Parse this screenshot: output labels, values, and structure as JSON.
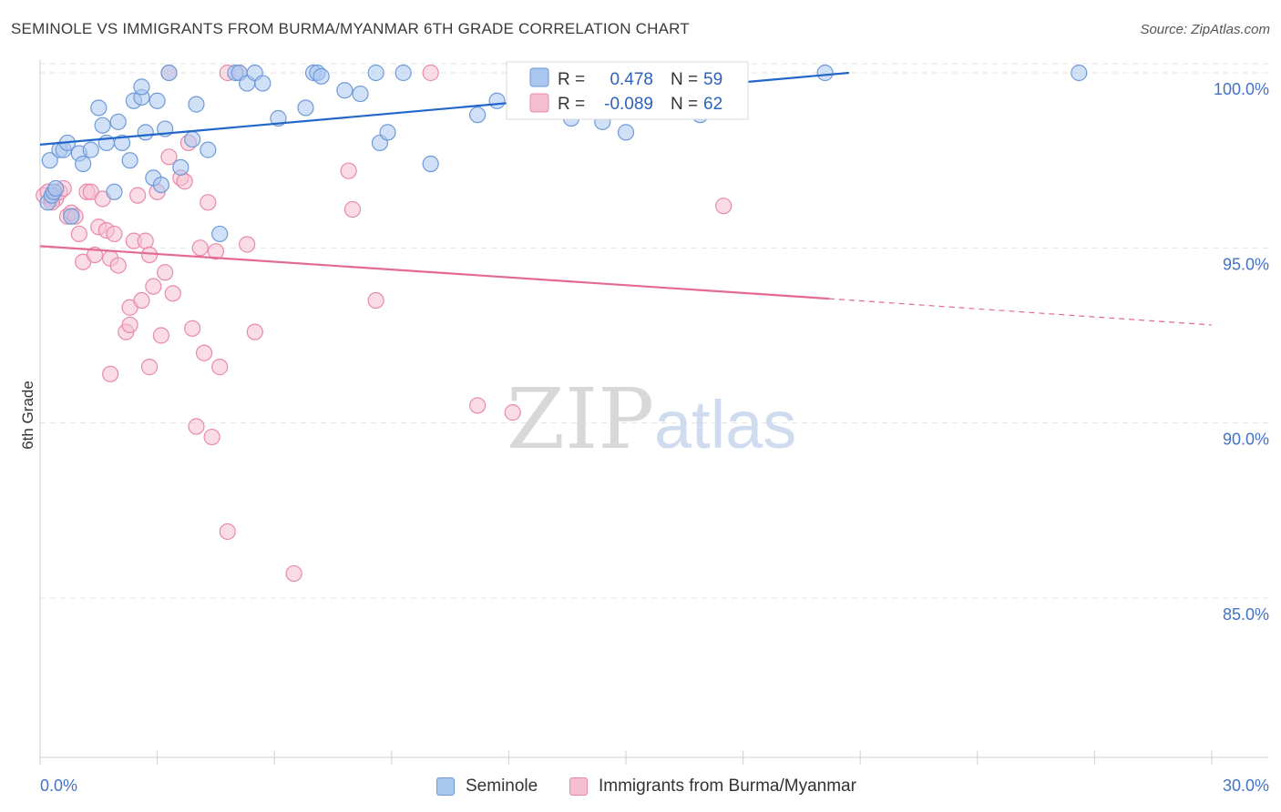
{
  "title": "SEMINOLE VS IMMIGRANTS FROM BURMA/MYANMAR 6TH GRADE CORRELATION CHART",
  "source": "Source: ZipAtlas.com",
  "watermark": {
    "zip": "ZIP",
    "atlas": "atlas"
  },
  "colors": {
    "blue_fill": "#a9c6ef",
    "blue_stroke": "#6f9ad8",
    "blue_line": "#2166c8",
    "pink_fill": "#f6bfd0",
    "pink_stroke": "#e88aaa",
    "pink_line": "#e46a93",
    "tick_text": "#4472c4",
    "grid": "#e3e3e3"
  },
  "legend": {
    "r_label": "R =",
    "n_label": "N =",
    "rows": [
      {
        "r": "0.478",
        "n": "59"
      },
      {
        "r": "-0.089",
        "n": "62"
      }
    ]
  },
  "chart_data": {
    "type": "scatter",
    "title": "SEMINOLE VS IMMIGRANTS FROM BURMA/MYANMAR 6TH GRADE CORRELATION CHART",
    "xlabel": "",
    "ylabel": "6th Grade",
    "xlim": [
      0,
      30
    ],
    "ylim": [
      80.5,
      100.8
    ],
    "x_tick_labels": [
      "0.0%",
      "30.0%"
    ],
    "y_ticks": [
      85,
      90,
      95,
      100
    ],
    "y_tick_labels": [
      "85.0%",
      "90.0%",
      "95.0%",
      "100.0%"
    ],
    "grid": "horizontal dashed",
    "legend_position": "top-center",
    "series": [
      {
        "name": "Seminole",
        "r": 0.478,
        "n": 59,
        "trend": {
          "x0": 0,
          "y0": 97.95,
          "x1": 20.2,
          "y1": 100.0
        },
        "points": [
          [
            0.2,
            96.3
          ],
          [
            0.25,
            97.5
          ],
          [
            0.3,
            96.5
          ],
          [
            0.35,
            96.6
          ],
          [
            0.4,
            96.7
          ],
          [
            0.5,
            97.8
          ],
          [
            0.6,
            97.8
          ],
          [
            0.7,
            98.0
          ],
          [
            0.8,
            95.9
          ],
          [
            1.0,
            97.7
          ],
          [
            1.1,
            97.4
          ],
          [
            1.3,
            97.8
          ],
          [
            1.5,
            99.0
          ],
          [
            1.6,
            98.5
          ],
          [
            1.7,
            98.0
          ],
          [
            1.9,
            96.6
          ],
          [
            2.0,
            98.6
          ],
          [
            2.1,
            98.0
          ],
          [
            2.3,
            97.5
          ],
          [
            2.4,
            99.2
          ],
          [
            2.6,
            99.3
          ],
          [
            2.6,
            99.6
          ],
          [
            2.7,
            98.3
          ],
          [
            2.9,
            97.0
          ],
          [
            3.0,
            99.2
          ],
          [
            3.1,
            96.8
          ],
          [
            3.2,
            98.4
          ],
          [
            3.3,
            100.0
          ],
          [
            3.6,
            97.3
          ],
          [
            3.9,
            98.1
          ],
          [
            4.0,
            99.1
          ],
          [
            4.3,
            97.8
          ],
          [
            4.6,
            95.4
          ],
          [
            5.0,
            100.0
          ],
          [
            5.1,
            100.0
          ],
          [
            5.3,
            99.7
          ],
          [
            5.5,
            100.0
          ],
          [
            5.7,
            99.7
          ],
          [
            6.1,
            98.7
          ],
          [
            6.8,
            99.0
          ],
          [
            7.0,
            100.0
          ],
          [
            7.1,
            100.0
          ],
          [
            7.2,
            99.9
          ],
          [
            7.8,
            99.5
          ],
          [
            8.2,
            99.4
          ],
          [
            8.6,
            100.0
          ],
          [
            8.7,
            98.0
          ],
          [
            8.9,
            98.3
          ],
          [
            9.3,
            100.0
          ],
          [
            10.0,
            97.4
          ],
          [
            11.2,
            98.8
          ],
          [
            11.7,
            99.2
          ],
          [
            12.3,
            100.0
          ],
          [
            13.6,
            98.7
          ],
          [
            14.4,
            98.6
          ],
          [
            15.0,
            98.3
          ],
          [
            16.9,
            98.8
          ],
          [
            20.1,
            100.0
          ],
          [
            26.6,
            100.0
          ]
        ]
      },
      {
        "name": "Immigrants from Burma/Myanmar",
        "r": -0.089,
        "n": 62,
        "trend_solid": {
          "x0": 0,
          "y0": 95.05,
          "x1": 20.2,
          "y1": 93.55
        },
        "trend_dashed": {
          "x0": 20.2,
          "y0": 93.55,
          "x1": 30,
          "y1": 92.8
        },
        "points": [
          [
            0.1,
            96.5
          ],
          [
            0.2,
            96.6
          ],
          [
            0.3,
            96.4
          ],
          [
            0.4,
            96.4
          ],
          [
            0.5,
            96.6
          ],
          [
            0.6,
            96.7
          ],
          [
            0.7,
            95.9
          ],
          [
            0.8,
            96.0
          ],
          [
            0.9,
            95.9
          ],
          [
            1.0,
            95.4
          ],
          [
            1.1,
            94.6
          ],
          [
            1.2,
            96.6
          ],
          [
            1.3,
            96.6
          ],
          [
            1.4,
            94.8
          ],
          [
            1.5,
            95.6
          ],
          [
            1.6,
            96.4
          ],
          [
            1.7,
            95.5
          ],
          [
            1.8,
            94.7
          ],
          [
            1.8,
            91.4
          ],
          [
            1.9,
            95.4
          ],
          [
            2.0,
            94.5
          ],
          [
            2.2,
            92.6
          ],
          [
            2.3,
            92.8
          ],
          [
            2.3,
            93.3
          ],
          [
            2.4,
            95.2
          ],
          [
            2.5,
            96.5
          ],
          [
            2.6,
            93.5
          ],
          [
            2.7,
            95.2
          ],
          [
            2.8,
            91.6
          ],
          [
            2.8,
            94.8
          ],
          [
            2.9,
            93.9
          ],
          [
            3.0,
            96.6
          ],
          [
            3.1,
            92.5
          ],
          [
            3.2,
            94.3
          ],
          [
            3.3,
            97.6
          ],
          [
            3.3,
            100.0
          ],
          [
            3.4,
            93.7
          ],
          [
            3.6,
            97.0
          ],
          [
            3.7,
            96.9
          ],
          [
            3.8,
            98.0
          ],
          [
            3.9,
            92.7
          ],
          [
            4.0,
            89.9
          ],
          [
            4.1,
            95.0
          ],
          [
            4.2,
            92.0
          ],
          [
            4.3,
            96.3
          ],
          [
            4.4,
            89.6
          ],
          [
            4.5,
            94.9
          ],
          [
            4.6,
            91.6
          ],
          [
            4.8,
            86.9
          ],
          [
            4.8,
            100.0
          ],
          [
            5.1,
            100.0
          ],
          [
            5.3,
            95.1
          ],
          [
            5.5,
            92.6
          ],
          [
            6.5,
            85.7
          ],
          [
            7.9,
            97.2
          ],
          [
            8.0,
            96.1
          ],
          [
            8.6,
            93.5
          ],
          [
            10.0,
            100.0
          ],
          [
            11.2,
            90.5
          ],
          [
            12.1,
            90.3
          ],
          [
            17.5,
            96.2
          ],
          [
            0.3,
            96.3
          ]
        ]
      }
    ]
  },
  "bottom_legend": [
    {
      "label": "Seminole"
    },
    {
      "label": "Immigrants from Burma/Myanmar"
    }
  ]
}
